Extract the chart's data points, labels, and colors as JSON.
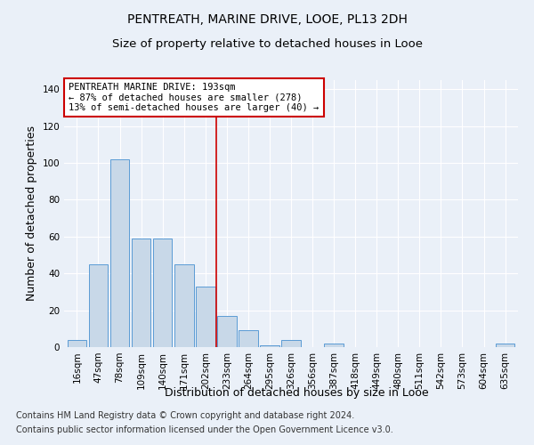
{
  "title": "PENTREATH, MARINE DRIVE, LOOE, PL13 2DH",
  "subtitle": "Size of property relative to detached houses in Looe",
  "xlabel": "Distribution of detached houses by size in Looe",
  "ylabel": "Number of detached properties",
  "categories": [
    "16sqm",
    "47sqm",
    "78sqm",
    "109sqm",
    "140sqm",
    "171sqm",
    "202sqm",
    "233sqm",
    "264sqm",
    "295sqm",
    "326sqm",
    "356sqm",
    "387sqm",
    "418sqm",
    "449sqm",
    "480sqm",
    "511sqm",
    "542sqm",
    "573sqm",
    "604sqm",
    "635sqm"
  ],
  "values": [
    4,
    45,
    102,
    59,
    59,
    45,
    33,
    17,
    9,
    1,
    4,
    0,
    2,
    0,
    0,
    0,
    0,
    0,
    0,
    0,
    2
  ],
  "bar_color": "#c8d8e8",
  "bar_edge_color": "#5b9bd5",
  "ylim": [
    0,
    145
  ],
  "yticks": [
    0,
    20,
    40,
    60,
    80,
    100,
    120,
    140
  ],
  "vline_x": 6.5,
  "annotation_box_color": "#cc0000",
  "vline_color": "#cc0000",
  "marker_label_line1": "PENTREATH MARINE DRIVE: 193sqm",
  "marker_label_line2": "← 87% of detached houses are smaller (278)",
  "marker_label_line3": "13% of semi-detached houses are larger (40) →",
  "footnote1": "Contains HM Land Registry data © Crown copyright and database right 2024.",
  "footnote2": "Contains public sector information licensed under the Open Government Licence v3.0.",
  "bg_color": "#eaf0f8",
  "plot_bg_color": "#eaf0f8",
  "grid_color": "#ffffff",
  "title_fontsize": 10,
  "subtitle_fontsize": 9.5,
  "axis_label_fontsize": 9,
  "tick_fontsize": 7.5,
  "annotation_fontsize": 7.5,
  "footnote_fontsize": 7
}
